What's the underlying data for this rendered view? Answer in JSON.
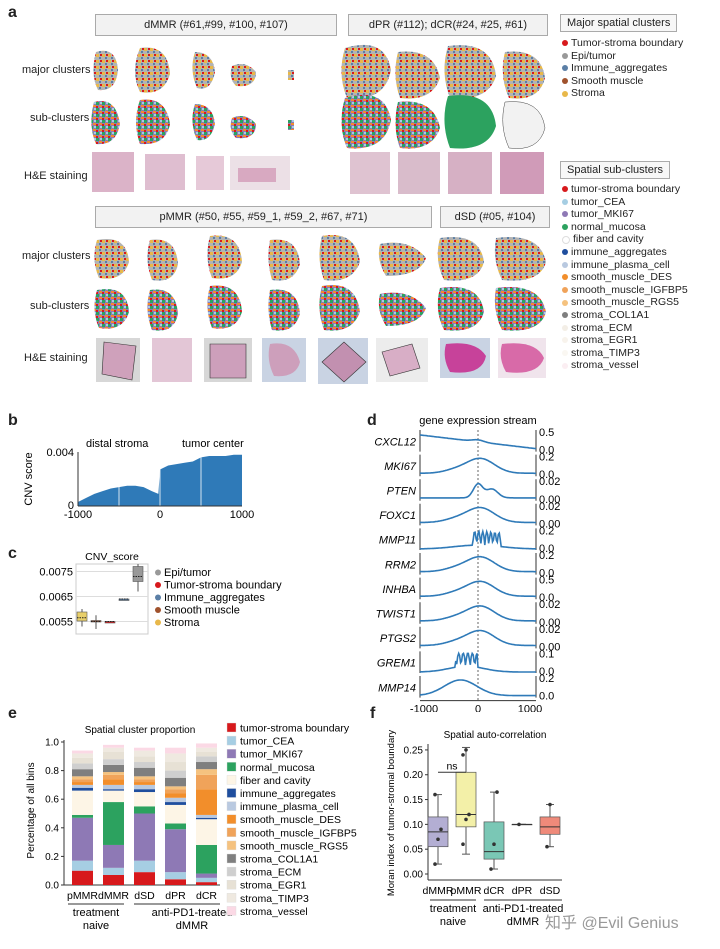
{
  "panel_labels": {
    "a": "a",
    "b": "b",
    "c": "c",
    "d": "d",
    "e": "e",
    "f": "f"
  },
  "panel_a": {
    "headers": {
      "dmmr": "dMMR (#61,#99, #100, #107)",
      "dpr": "dPR (#112); dCR(#24, #25, #61)",
      "pmmr": "pMMR (#50, #55, #59_1, #59_2, #67, #71)",
      "dsd": "dSD (#05, #104)"
    },
    "row_labels": [
      "major clusters",
      "sub-clusters",
      "H&E  staining"
    ],
    "major_legend_title": "Major spatial clusters",
    "major_legend": [
      {
        "label": "Tumor-stroma boundary",
        "color": "#d7191c"
      },
      {
        "label": "Epi/tumor",
        "color": "#999999"
      },
      {
        "label": "Immune_aggregates",
        "color": "#5b7fa6"
      },
      {
        "label": "Smooth muscle",
        "color": "#a0522d"
      },
      {
        "label": "Stroma",
        "color": "#e8b84a"
      }
    ],
    "sub_legend_title": "Spatial sub-clusters",
    "sub_legend": [
      {
        "label": "tumor-stroma boundary",
        "color": "#d7191c"
      },
      {
        "label": "tumor_CEA",
        "color": "#a6cee3"
      },
      {
        "label": "tumor_MKI67",
        "color": "#8e79b5"
      },
      {
        "label": "normal_mucosa",
        "color": "#2ca25f"
      },
      {
        "label": "fiber and cavity",
        "color": "#ffffff"
      },
      {
        "label": "immune_aggregates",
        "color": "#1f4e9e"
      },
      {
        "label": "immune_plasma_cell",
        "color": "#b9c9e0"
      },
      {
        "label": "smooth_muscle_DES",
        "color": "#f28e2b"
      },
      {
        "label": "smooth_muscle_IGFBP5",
        "color": "#f0a35a"
      },
      {
        "label": "smooth_muscle_RGS5",
        "color": "#f5c27f"
      },
      {
        "label": "stroma_COL1A1",
        "color": "#7f7f7f"
      },
      {
        "label": "stroma_ECM",
        "color": "#f3eee6"
      },
      {
        "label": "stroma_EGR1",
        "color": "#f8f3ec"
      },
      {
        "label": "stroma_TIMP3",
        "color": "#faf7f2"
      },
      {
        "label": "stroma_vessel",
        "color": "#fbeef2"
      }
    ]
  },
  "chart_data": [
    {
      "id": "b",
      "type": "area",
      "xlabel": "",
      "ylabel": "CNV score",
      "annotations": [
        "distal stroma",
        "tumor center"
      ],
      "xlim": [
        -1000,
        1000
      ],
      "ylim": [
        0,
        0.004
      ],
      "xticks": [
        "-1000",
        "0",
        "1000"
      ],
      "yticks": [
        "0",
        "0.004"
      ],
      "x": [
        -1000,
        -900,
        -800,
        -700,
        -600,
        -500,
        -400,
        -300,
        -200,
        -100,
        -20,
        0,
        100,
        200,
        300,
        400,
        500,
        600,
        700,
        800,
        900,
        1000
      ],
      "y": [
        0.0003,
        0.0006,
        0.0009,
        0.0011,
        0.0013,
        0.0014,
        0.0015,
        0.0015,
        0.0014,
        0.0011,
        0.0009,
        0.0027,
        0.003,
        0.0031,
        0.0032,
        0.0033,
        0.0036,
        0.0037,
        0.0037,
        0.0037,
        0.0038,
        0.0038
      ]
    },
    {
      "id": "c",
      "type": "box",
      "title": "CNV_score",
      "yticks": [
        "0.0075",
        "0.0065",
        "0.0055"
      ],
      "ylim": [
        0.005,
        0.0078
      ],
      "legend": [
        {
          "label": "Epi/tumor",
          "color": "#999999"
        },
        {
          "label": "Tumor-stroma boundary",
          "color": "#d7191c"
        },
        {
          "label": "Immune_aggregates",
          "color": "#5b7fa6"
        },
        {
          "label": "Smooth muscle",
          "color": "#a0522d"
        },
        {
          "label": "Stroma",
          "color": "#e8b84a"
        }
      ],
      "boxes": [
        {
          "group": "Stroma",
          "q1": 0.00552,
          "median": 0.00565,
          "q3": 0.00588,
          "low": 0.0053,
          "high": 0.006,
          "color": "#e8cf6a"
        },
        {
          "group": "Smooth muscle",
          "q1": 0.00548,
          "median": 0.0055,
          "q3": 0.00554,
          "low": 0.0052,
          "high": 0.00575,
          "color": "#a0522d"
        },
        {
          "group": "Tumor-stroma boundary",
          "q1": 0.0055,
          "median": 0.0055,
          "q3": 0.0055,
          "low": 0.0055,
          "high": 0.0055,
          "color": "#d7191c"
        },
        {
          "group": "Immune_aggregates",
          "q1": 0.0064,
          "median": 0.0064,
          "q3": 0.0064,
          "low": 0.0064,
          "high": 0.0064,
          "color": "#5b7fa6"
        },
        {
          "group": "Epi/tumor",
          "q1": 0.0071,
          "median": 0.0073,
          "q3": 0.0077,
          "low": 0.0067,
          "high": 0.0078,
          "color": "#999999"
        }
      ]
    },
    {
      "id": "d",
      "type": "line",
      "title": "gene expression stream",
      "xticks": [
        "-1000",
        "0",
        "1000"
      ],
      "genes": [
        {
          "name": "CXCL12",
          "max": "0.5",
          "min": "0.0",
          "shape": "decline"
        },
        {
          "name": "MKI67",
          "max": "0.2",
          "min": "0.0",
          "shape": "peak"
        },
        {
          "name": "PTEN",
          "max": "0.025",
          "min": "0.000",
          "shape": "spiky"
        },
        {
          "name": "FOXC1",
          "max": "0.02",
          "min": "0.00",
          "shape": "peak"
        },
        {
          "name": "MMP11",
          "max": "0.2",
          "min": "0.0",
          "shape": "bursty"
        },
        {
          "name": "RRM2",
          "max": "0.2",
          "min": "0.0",
          "shape": "peak"
        },
        {
          "name": "INHBA",
          "max": "0.5",
          "min": "0.0",
          "shape": "peak"
        },
        {
          "name": "TWIST1",
          "max": "0.02",
          "min": "0.00",
          "shape": "peak"
        },
        {
          "name": "PTGS2",
          "max": "0.025",
          "min": "0.000",
          "shape": "peak"
        },
        {
          "name": "GREM1",
          "max": "0.1",
          "min": "0.0",
          "shape": "bursty_left"
        },
        {
          "name": "MMP14",
          "max": "0.2",
          "min": "0.0",
          "shape": "peak_left"
        }
      ]
    },
    {
      "id": "e",
      "type": "bar",
      "title": "Spatial cluster proportion",
      "ylabel": "Percentage of all bins",
      "yticks": [
        "0.0",
        "0.2",
        "0.4",
        "0.6",
        "0.8",
        "1.0"
      ],
      "categories": [
        "pMMR",
        "dMMR",
        "dSD",
        "dPR",
        "dCR"
      ],
      "group_labels": [
        "treatment\nnaive",
        "anti-PD1-treated\ndMMR"
      ],
      "series": [
        {
          "name": "tumor-stroma boundary",
          "color": "#d7191c",
          "values": [
            0.1,
            0.07,
            0.09,
            0.04,
            0.02
          ]
        },
        {
          "name": "tumor_CEA",
          "color": "#a6cee3",
          "values": [
            0.07,
            0.05,
            0.08,
            0.05,
            0.03
          ]
        },
        {
          "name": "tumor_MKI67",
          "color": "#8e79b5",
          "values": [
            0.3,
            0.16,
            0.33,
            0.3,
            0.03
          ]
        },
        {
          "name": "normal_mucosa",
          "color": "#2ca25f",
          "values": [
            0.02,
            0.3,
            0.05,
            0.04,
            0.2
          ]
        },
        {
          "name": "fiber and cavity",
          "color": "#fdf5e6",
          "values": [
            0.17,
            0.08,
            0.1,
            0.13,
            0.18
          ]
        },
        {
          "name": "immune_aggregates",
          "color": "#1f4e9e",
          "values": [
            0.02,
            0.01,
            0.02,
            0.02,
            0.01
          ]
        },
        {
          "name": "immune_plasma_cell",
          "color": "#b9c9e0",
          "values": [
            0.02,
            0.03,
            0.03,
            0.03,
            0.02
          ]
        },
        {
          "name": "smooth_muscle_DES",
          "color": "#f28e2b",
          "values": [
            0.02,
            0.04,
            0.02,
            0.03,
            0.18
          ]
        },
        {
          "name": "smooth_muscle_IGFBP5",
          "color": "#f0a35a",
          "values": [
            0.02,
            0.03,
            0.02,
            0.03,
            0.1
          ]
        },
        {
          "name": "smooth_muscle_RGS5",
          "color": "#f5c27f",
          "values": [
            0.02,
            0.02,
            0.02,
            0.02,
            0.04
          ]
        },
        {
          "name": "stroma_COL1A1",
          "color": "#7f7f7f",
          "values": [
            0.05,
            0.05,
            0.06,
            0.06,
            0.05
          ]
        },
        {
          "name": "stroma_ECM",
          "color": "#cfcfcf",
          "values": [
            0.04,
            0.04,
            0.04,
            0.05,
            0.04
          ]
        },
        {
          "name": "stroma_EGR1",
          "color": "#e7e1d5",
          "values": [
            0.04,
            0.05,
            0.04,
            0.06,
            0.03
          ]
        },
        {
          "name": "stroma_TIMP3",
          "color": "#efe9e0",
          "values": [
            0.03,
            0.03,
            0.04,
            0.06,
            0.03
          ]
        },
        {
          "name": "stroma_vessel",
          "color": "#fbd9e5",
          "values": [
            0.02,
            0.02,
            0.02,
            0.04,
            0.03
          ]
        }
      ]
    },
    {
      "id": "f",
      "type": "box",
      "title": "Spatial auto-correlation",
      "ylabel": "Moran index of tumor-stromal boundary",
      "yticks": [
        "0.00",
        "0.05",
        "0.10",
        "0.15",
        "0.20",
        "0.25"
      ],
      "ylim": [
        0,
        0.27
      ],
      "categories": [
        "dMMR",
        "pMMR",
        "dCR",
        "dPR",
        "dSD"
      ],
      "group_labels": [
        "treatment\nnaive",
        "anti-PD1-treated\ndMMR"
      ],
      "annotation": "ns",
      "boxes": [
        {
          "group": "dMMR",
          "low": 0.02,
          "q1": 0.055,
          "median": 0.085,
          "q3": 0.115,
          "high": 0.16,
          "color": "#b3aed3",
          "points": [
            0.02,
            0.07,
            0.09,
            0.16
          ]
        },
        {
          "group": "pMMR",
          "low": 0.04,
          "q1": 0.095,
          "median": 0.12,
          "q3": 0.205,
          "high": 0.255,
          "color": "#f3f0a8",
          "points": [
            0.06,
            0.11,
            0.12,
            0.24,
            0.25
          ]
        },
        {
          "group": "dCR",
          "low": 0.01,
          "q1": 0.03,
          "median": 0.045,
          "q3": 0.105,
          "high": 0.165,
          "color": "#7ac7b5",
          "points": [
            0.01,
            0.06,
            0.165
          ]
        },
        {
          "group": "dPR",
          "low": 0.1,
          "q1": 0.1,
          "median": 0.1,
          "q3": 0.1,
          "high": 0.1,
          "color": "#9e9e9e",
          "points": [
            0.1
          ]
        },
        {
          "group": "dSD",
          "low": 0.055,
          "q1": 0.08,
          "median": 0.095,
          "q3": 0.115,
          "high": 0.14,
          "color": "#ef8a7a",
          "points": [
            0.055,
            0.14
          ]
        }
      ]
    }
  ],
  "watermark": "知乎 @Evil Genius"
}
